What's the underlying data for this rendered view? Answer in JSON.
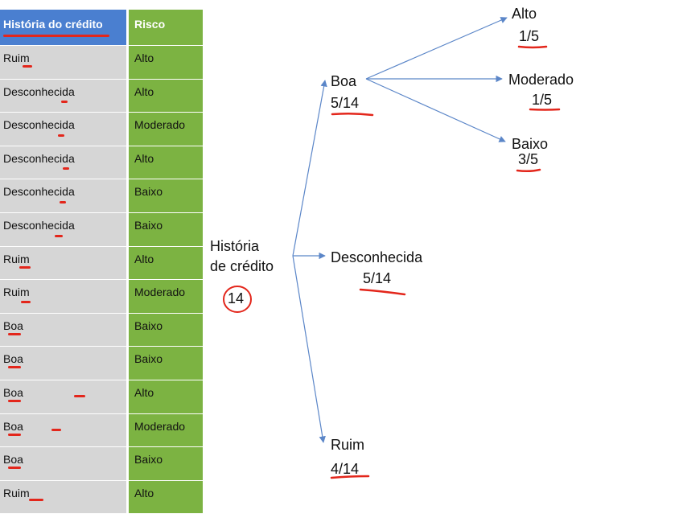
{
  "table": {
    "headers": [
      "História do crédito",
      "Risco"
    ],
    "rows": [
      [
        "Ruim",
        "Alto"
      ],
      [
        "Desconhecida",
        "Alto"
      ],
      [
        "Desconhecida",
        "Moderado"
      ],
      [
        "Desconhecida",
        "Alto"
      ],
      [
        "Desconhecida",
        "Baixo"
      ],
      [
        "Desconhecida",
        "Baixo"
      ],
      [
        "Ruim",
        "Alto"
      ],
      [
        "Ruim",
        "Moderado"
      ],
      [
        "Boa",
        "Baixo"
      ],
      [
        "Boa",
        "Baixo"
      ],
      [
        "Boa",
        "Alto"
      ],
      [
        "Boa",
        "Moderado"
      ],
      [
        "Boa",
        "Baixo"
      ],
      [
        "Ruim",
        "Alto"
      ]
    ]
  },
  "tree": {
    "root": {
      "line1": "História",
      "line2": "de crédito",
      "count": "14"
    },
    "branches": [
      {
        "label": "Boa",
        "fraction": "5/14"
      },
      {
        "label": "Desconhecida",
        "fraction": "5/14"
      },
      {
        "label": "Ruim",
        "fraction": "4/14"
      }
    ],
    "leaves": [
      {
        "label": "Alto",
        "fraction": "1/5"
      },
      {
        "label": "Moderado",
        "fraction": "1/5"
      },
      {
        "label": "Baixo",
        "fraction": "3/5"
      }
    ]
  },
  "colors": {
    "header_blue": "#4a7fd0",
    "risk_green": "#7cb342",
    "cell_gray": "#d6d6d6",
    "arrow": "#5b86c8",
    "ink_red": "#e3261b"
  }
}
